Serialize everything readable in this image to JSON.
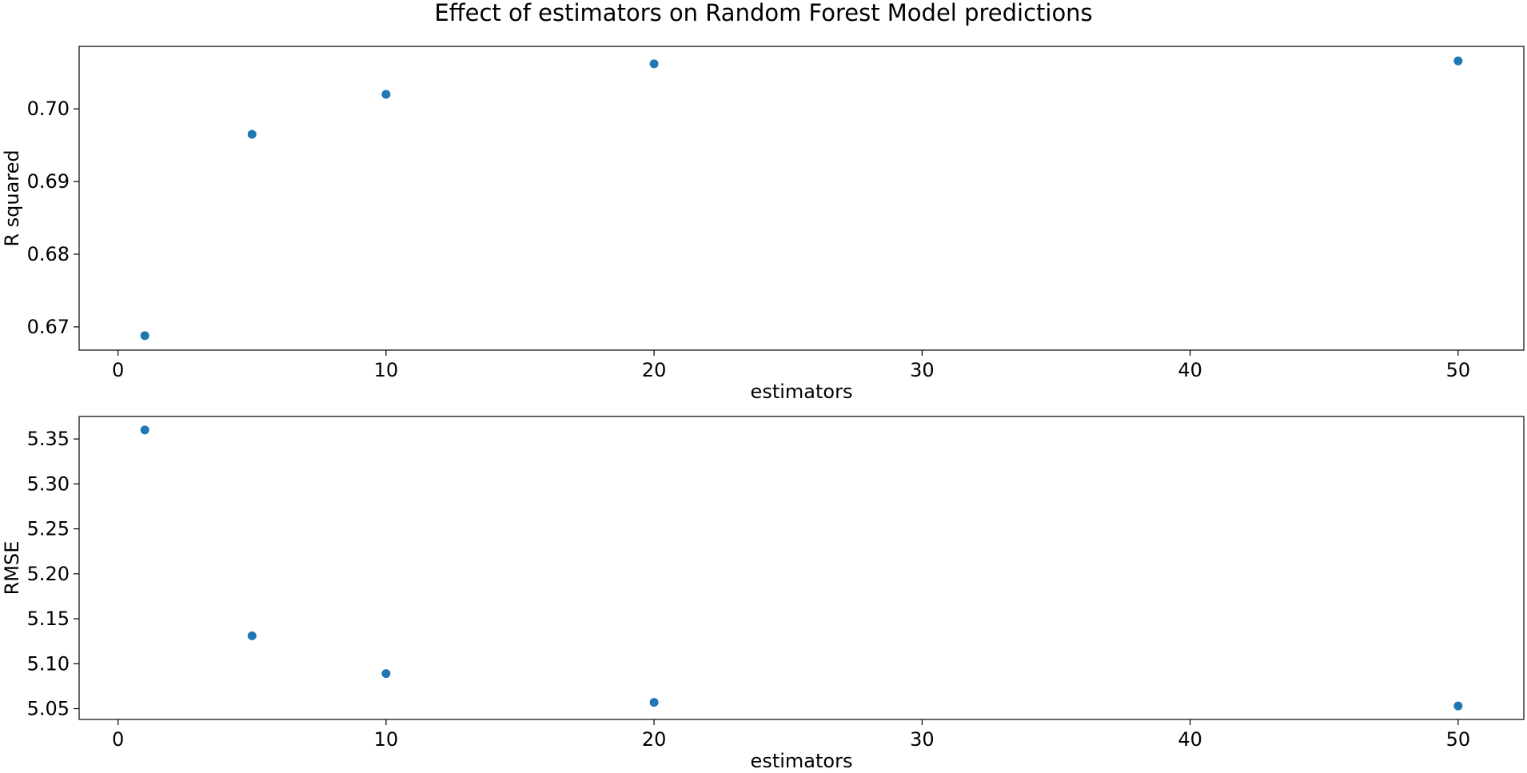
{
  "figure": {
    "title": "Effect of estimators on Random Forest Model predictions"
  },
  "chart_data": [
    {
      "type": "scatter",
      "title": "",
      "xlabel": "estimators",
      "ylabel": "R squared",
      "x": [
        1,
        5,
        10,
        20,
        50
      ],
      "y": [
        0.6688,
        0.6965,
        0.702,
        0.7062,
        0.7066
      ],
      "xlim": [
        -1.45,
        52.45
      ],
      "ylim": [
        0.6668,
        0.7086
      ],
      "xticks": [
        0,
        10,
        20,
        30,
        40,
        50
      ],
      "xtick_labels": [
        "0",
        "10",
        "20",
        "30",
        "40",
        "50"
      ],
      "yticks": [
        0.67,
        0.68,
        0.69,
        0.7
      ],
      "ytick_labels": [
        "0.67",
        "0.68",
        "0.69",
        "0.70"
      ],
      "marker_color": "#1f77b4",
      "grid": false,
      "legend": "none"
    },
    {
      "type": "scatter",
      "title": "",
      "xlabel": "estimators",
      "ylabel": "RMSE",
      "x": [
        1,
        5,
        10,
        20,
        50
      ],
      "y": [
        5.36,
        5.131,
        5.089,
        5.057,
        5.053
      ],
      "xlim": [
        -1.45,
        52.45
      ],
      "ylim": [
        5.038,
        5.375
      ],
      "xticks": [
        0,
        10,
        20,
        30,
        40,
        50
      ],
      "xtick_labels": [
        "0",
        "10",
        "20",
        "30",
        "40",
        "50"
      ],
      "yticks": [
        5.05,
        5.1,
        5.15,
        5.2,
        5.25,
        5.3,
        5.35
      ],
      "ytick_labels": [
        "5.05",
        "5.10",
        "5.15",
        "5.20",
        "5.25",
        "5.30",
        "5.35"
      ],
      "marker_color": "#1f77b4",
      "grid": false,
      "legend": "none"
    }
  ]
}
